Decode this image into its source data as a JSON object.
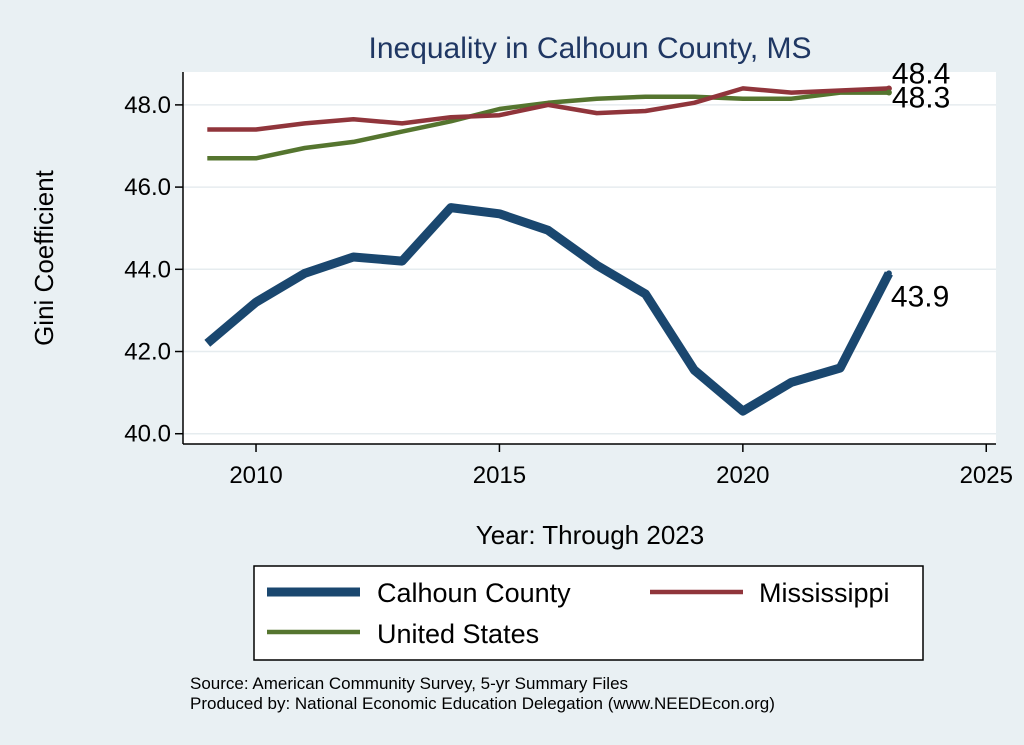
{
  "chart_data": {
    "type": "line",
    "title": "Inequality in Calhoun County, MS",
    "xlabel": "Year: Through 2023",
    "ylabel": "Gini Coefficient",
    "xlim": [
      2008.5,
      2025.2
    ],
    "ylim": [
      39.75,
      48.8
    ],
    "xticks": [
      2010,
      2015,
      2020,
      2025
    ],
    "yticks": [
      40,
      42,
      44,
      46,
      48
    ],
    "ytick_labels": [
      "40.0",
      "42.0",
      "44.0",
      "46.0",
      "48.0"
    ],
    "grid": true,
    "x": [
      2009,
      2010,
      2011,
      2012,
      2013,
      2014,
      2015,
      2016,
      2017,
      2018,
      2019,
      2020,
      2021,
      2022,
      2023
    ],
    "series": [
      {
        "name": "Calhoun County",
        "color": "#1a476f",
        "values": [
          42.2,
          43.2,
          43.9,
          44.3,
          44.2,
          45.5,
          45.35,
          44.95,
          44.1,
          43.4,
          41.55,
          40.55,
          41.25,
          41.6,
          43.9
        ],
        "end_label": "43.9"
      },
      {
        "name": "Mississippi",
        "color": "#90353b",
        "values": [
          47.4,
          47.4,
          47.55,
          47.65,
          47.55,
          47.7,
          47.75,
          48.0,
          47.8,
          47.85,
          48.05,
          48.4,
          48.3,
          48.35,
          48.4
        ],
        "end_label": "48.4"
      },
      {
        "name": "United States",
        "color": "#55752f",
        "values": [
          46.7,
          46.7,
          46.95,
          47.1,
          47.35,
          47.6,
          47.9,
          48.05,
          48.15,
          48.2,
          48.2,
          48.15,
          48.15,
          48.3,
          48.3
        ],
        "end_label": "48.3"
      }
    ],
    "legend_position": "bottom",
    "source_lines": [
      "Source: American Community Survey, 5-yr Summary Files",
      "Produced by: National Economic Education Delegation (www.NEEDEcon.org)"
    ]
  }
}
